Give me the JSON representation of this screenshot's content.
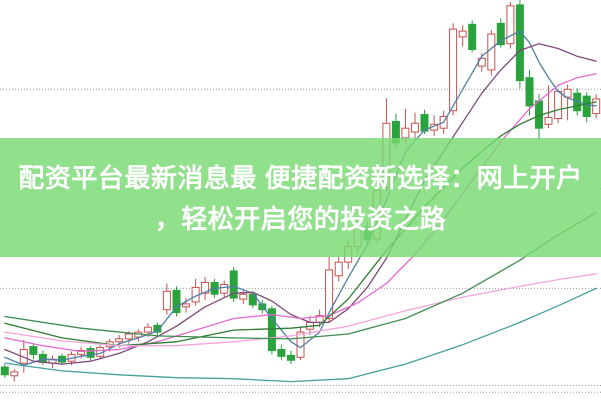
{
  "banner": {
    "line1": "配资平台最新消息最 便捷配资新选择：网上开户",
    "line2": "，轻松开启您的投资之路",
    "bg_color_rgba": "rgba(120,217,115,0.82)",
    "text_color": "#ffffff"
  },
  "chart_data": {
    "type": "candlestick",
    "title": "",
    "legend": "none",
    "x_axis_labels_visible": false,
    "y_axis_labels_visible": false,
    "ylim": [
      9.85,
      13.98
    ],
    "grid": {
      "style": "dotted",
      "color": "#9a9a9a",
      "horizontal_lines_price": [
        13.06,
        12.04,
        11.01,
        10.01,
        9.94
      ]
    },
    "up_color": "#c9504e",
    "up_fill": "#ffffff",
    "down_color": "#2aa23e",
    "candles_ohlc": [
      [
        10.2,
        10.23,
        10.09,
        10.12
      ],
      [
        10.11,
        10.18,
        10.05,
        10.15
      ],
      [
        10.24,
        10.48,
        10.14,
        10.38
      ],
      [
        10.41,
        10.45,
        10.28,
        10.33
      ],
      [
        10.33,
        10.37,
        10.22,
        10.25
      ],
      [
        10.24,
        10.32,
        10.19,
        10.28
      ],
      [
        10.31,
        10.34,
        10.22,
        10.25
      ],
      [
        10.26,
        10.36,
        10.22,
        10.33
      ],
      [
        10.33,
        10.41,
        10.29,
        10.37
      ],
      [
        10.39,
        10.42,
        10.27,
        10.3
      ],
      [
        10.31,
        10.43,
        10.28,
        10.4
      ],
      [
        10.41,
        10.49,
        10.36,
        10.46
      ],
      [
        10.46,
        10.53,
        10.4,
        10.49
      ],
      [
        10.49,
        10.57,
        10.44,
        10.54
      ],
      [
        10.51,
        10.59,
        10.46,
        10.56
      ],
      [
        10.56,
        10.65,
        10.51,
        10.61
      ],
      [
        10.63,
        10.66,
        10.52,
        10.56
      ],
      [
        10.79,
        11.06,
        10.74,
        10.98
      ],
      [
        10.99,
        11.03,
        10.72,
        10.76
      ],
      [
        10.82,
        10.91,
        10.76,
        10.85
      ],
      [
        10.87,
        11.11,
        10.83,
        11.02
      ],
      [
        10.96,
        11.13,
        10.89,
        11.07
      ],
      [
        11.07,
        11.11,
        10.91,
        10.95
      ],
      [
        10.96,
        11.09,
        10.92,
        11.05
      ],
      [
        11.19,
        11.23,
        10.87,
        10.91
      ],
      [
        10.9,
        10.99,
        10.85,
        10.95
      ],
      [
        10.95,
        10.98,
        10.81,
        10.84
      ],
      [
        10.85,
        10.89,
        10.75,
        10.79
      ],
      [
        10.8,
        10.83,
        10.33,
        10.37
      ],
      [
        10.38,
        10.43,
        10.27,
        10.31
      ],
      [
        10.32,
        10.37,
        10.23,
        10.27
      ],
      [
        10.3,
        10.61,
        10.27,
        10.56
      ],
      [
        10.59,
        10.73,
        10.53,
        10.66
      ],
      [
        10.66,
        10.79,
        10.61,
        10.73
      ],
      [
        10.7,
        11.35,
        10.66,
        11.2
      ],
      [
        11.14,
        11.36,
        11.08,
        11.28
      ],
      [
        11.28,
        11.52,
        11.21,
        11.44
      ],
      [
        11.44,
        11.72,
        11.37,
        11.64
      ],
      [
        11.64,
        11.7,
        11.46,
        11.51
      ],
      [
        11.52,
        12.12,
        11.49,
        12.02
      ],
      [
        12.05,
        12.97,
        12.0,
        12.71
      ],
      [
        12.73,
        12.81,
        12.45,
        12.51
      ],
      [
        12.56,
        12.86,
        12.52,
        12.66
      ],
      [
        12.62,
        12.82,
        12.55,
        12.71
      ],
      [
        12.8,
        12.85,
        12.6,
        12.63
      ],
      [
        12.64,
        12.79,
        12.58,
        12.7
      ],
      [
        12.66,
        12.84,
        12.6,
        12.78
      ],
      [
        12.84,
        13.74,
        12.79,
        13.68
      ],
      [
        13.6,
        13.72,
        13.5,
        13.66
      ],
      [
        13.73,
        13.77,
        13.44,
        13.47
      ],
      [
        13.3,
        13.43,
        13.24,
        13.38
      ],
      [
        13.26,
        13.67,
        13.2,
        13.63
      ],
      [
        13.74,
        13.79,
        13.49,
        13.52
      ],
      [
        13.53,
        13.96,
        13.48,
        13.92
      ],
      [
        13.93,
        13.98,
        13.07,
        13.15
      ],
      [
        13.18,
        13.26,
        12.79,
        12.89
      ],
      [
        12.94,
        13.01,
        12.54,
        12.66
      ],
      [
        12.7,
        13.1,
        12.66,
        12.77
      ],
      [
        12.76,
        13.05,
        12.71,
        13.04
      ],
      [
        12.98,
        13.11,
        12.74,
        13.06
      ],
      [
        13.02,
        13.07,
        12.79,
        12.84
      ],
      [
        12.99,
        13.03,
        12.72,
        12.78
      ],
      [
        12.81,
        13.01,
        12.76,
        12.96
      ]
    ],
    "lines": [
      {
        "name": "ma-blue",
        "color": "#4e7fa6",
        "points": [
          [
            0,
            10.3
          ],
          [
            2,
            10.22
          ],
          [
            4,
            10.28
          ],
          [
            6,
            10.27
          ],
          [
            8,
            10.31
          ],
          [
            10,
            10.34
          ],
          [
            12,
            10.44
          ],
          [
            14,
            10.5
          ],
          [
            16,
            10.57
          ],
          [
            18,
            10.82
          ],
          [
            20,
            10.93
          ],
          [
            22,
            11.01
          ],
          [
            24,
            11.03
          ],
          [
            26,
            10.96
          ],
          [
            28,
            10.7
          ],
          [
            30,
            10.46
          ],
          [
            31,
            10.4
          ],
          [
            33,
            10.56
          ],
          [
            34,
            10.76
          ],
          [
            36,
            11.12
          ],
          [
            38,
            11.46
          ],
          [
            40,
            11.92
          ],
          [
            42,
            12.42
          ],
          [
            44,
            12.64
          ],
          [
            46,
            12.72
          ],
          [
            48,
            13.06
          ],
          [
            50,
            13.4
          ],
          [
            52,
            13.56
          ],
          [
            54,
            13.66
          ],
          [
            55,
            13.54
          ],
          [
            56,
            13.34
          ],
          [
            57,
            13.18
          ],
          [
            58,
            13.04
          ],
          [
            59,
            12.97
          ],
          [
            60,
            12.94
          ],
          [
            61,
            12.9
          ],
          [
            62,
            12.89
          ]
        ]
      },
      {
        "name": "ma-purple",
        "color": "#7d4a78",
        "points": [
          [
            0,
            10.38
          ],
          [
            3,
            10.26
          ],
          [
            6,
            10.23
          ],
          [
            9,
            10.26
          ],
          [
            12,
            10.34
          ],
          [
            15,
            10.46
          ],
          [
            18,
            10.62
          ],
          [
            21,
            10.82
          ],
          [
            24,
            10.96
          ],
          [
            26,
            10.97
          ],
          [
            28,
            10.88
          ],
          [
            30,
            10.74
          ],
          [
            32,
            10.66
          ],
          [
            34,
            10.66
          ],
          [
            36,
            10.8
          ],
          [
            38,
            11.02
          ],
          [
            40,
            11.32
          ],
          [
            42,
            11.72
          ],
          [
            44,
            12.12
          ],
          [
            46,
            12.42
          ],
          [
            48,
            12.72
          ],
          [
            50,
            13.02
          ],
          [
            52,
            13.26
          ],
          [
            54,
            13.46
          ],
          [
            56,
            13.53
          ],
          [
            58,
            13.48
          ],
          [
            60,
            13.4
          ],
          [
            62,
            13.35
          ]
        ]
      },
      {
        "name": "ma-magenta",
        "color": "#e36ad0",
        "points": [
          [
            0,
            10.5
          ],
          [
            4,
            10.42
          ],
          [
            8,
            10.36
          ],
          [
            12,
            10.38
          ],
          [
            16,
            10.46
          ],
          [
            20,
            10.58
          ],
          [
            24,
            10.7
          ],
          [
            28,
            10.74
          ],
          [
            31,
            10.7
          ],
          [
            34,
            10.73
          ],
          [
            37,
            10.86
          ],
          [
            40,
            11.06
          ],
          [
            43,
            11.36
          ],
          [
            46,
            11.72
          ],
          [
            49,
            12.12
          ],
          [
            52,
            12.52
          ],
          [
            55,
            12.86
          ],
          [
            58,
            13.1
          ],
          [
            60,
            13.18
          ],
          [
            62,
            13.22
          ]
        ]
      },
      {
        "name": "ma-dark-green",
        "color": "#2e7d32",
        "points": [
          [
            0,
            10.65
          ],
          [
            6,
            10.5
          ],
          [
            12,
            10.42
          ],
          [
            18,
            10.46
          ],
          [
            24,
            10.58
          ],
          [
            30,
            10.6
          ],
          [
            33,
            10.63
          ],
          [
            36,
            10.9
          ],
          [
            38,
            11.15
          ],
          [
            40,
            11.4
          ],
          [
            42,
            11.62
          ],
          [
            44,
            11.85
          ],
          [
            46,
            12.05
          ],
          [
            48,
            12.25
          ],
          [
            50,
            12.42
          ],
          [
            52,
            12.58
          ],
          [
            54,
            12.7
          ],
          [
            56,
            12.79
          ],
          [
            58,
            12.85
          ],
          [
            60,
            12.89
          ],
          [
            62,
            12.93
          ]
        ]
      },
      {
        "name": "ma-light-pink",
        "color": "#f2a6dd",
        "points": [
          [
            0,
            10.56
          ],
          [
            6,
            10.47
          ],
          [
            12,
            10.42
          ],
          [
            18,
            10.42
          ],
          [
            24,
            10.46
          ],
          [
            30,
            10.52
          ],
          [
            36,
            10.62
          ],
          [
            42,
            10.78
          ],
          [
            48,
            10.92
          ],
          [
            54,
            11.03
          ],
          [
            58,
            11.1
          ],
          [
            62,
            11.16
          ]
        ]
      },
      {
        "name": "ma-green-slow",
        "color": "#3e8c50",
        "points": [
          [
            0,
            10.72
          ],
          [
            8,
            10.6
          ],
          [
            16,
            10.52
          ],
          [
            24,
            10.5
          ],
          [
            30,
            10.49
          ],
          [
            36,
            10.54
          ],
          [
            42,
            10.7
          ],
          [
            48,
            10.96
          ],
          [
            54,
            11.3
          ],
          [
            58,
            11.56
          ],
          [
            62,
            11.79
          ]
        ]
      },
      {
        "name": "ma-teal-slow",
        "color": "#44a09a",
        "points": [
          [
            0,
            10.24
          ],
          [
            6,
            10.16
          ],
          [
            12,
            10.12
          ],
          [
            18,
            10.09
          ],
          [
            24,
            10.08
          ],
          [
            30,
            10.05
          ],
          [
            36,
            10.08
          ],
          [
            42,
            10.23
          ],
          [
            48,
            10.43
          ],
          [
            54,
            10.66
          ],
          [
            58,
            10.83
          ],
          [
            62,
            11.01
          ]
        ]
      }
    ]
  }
}
